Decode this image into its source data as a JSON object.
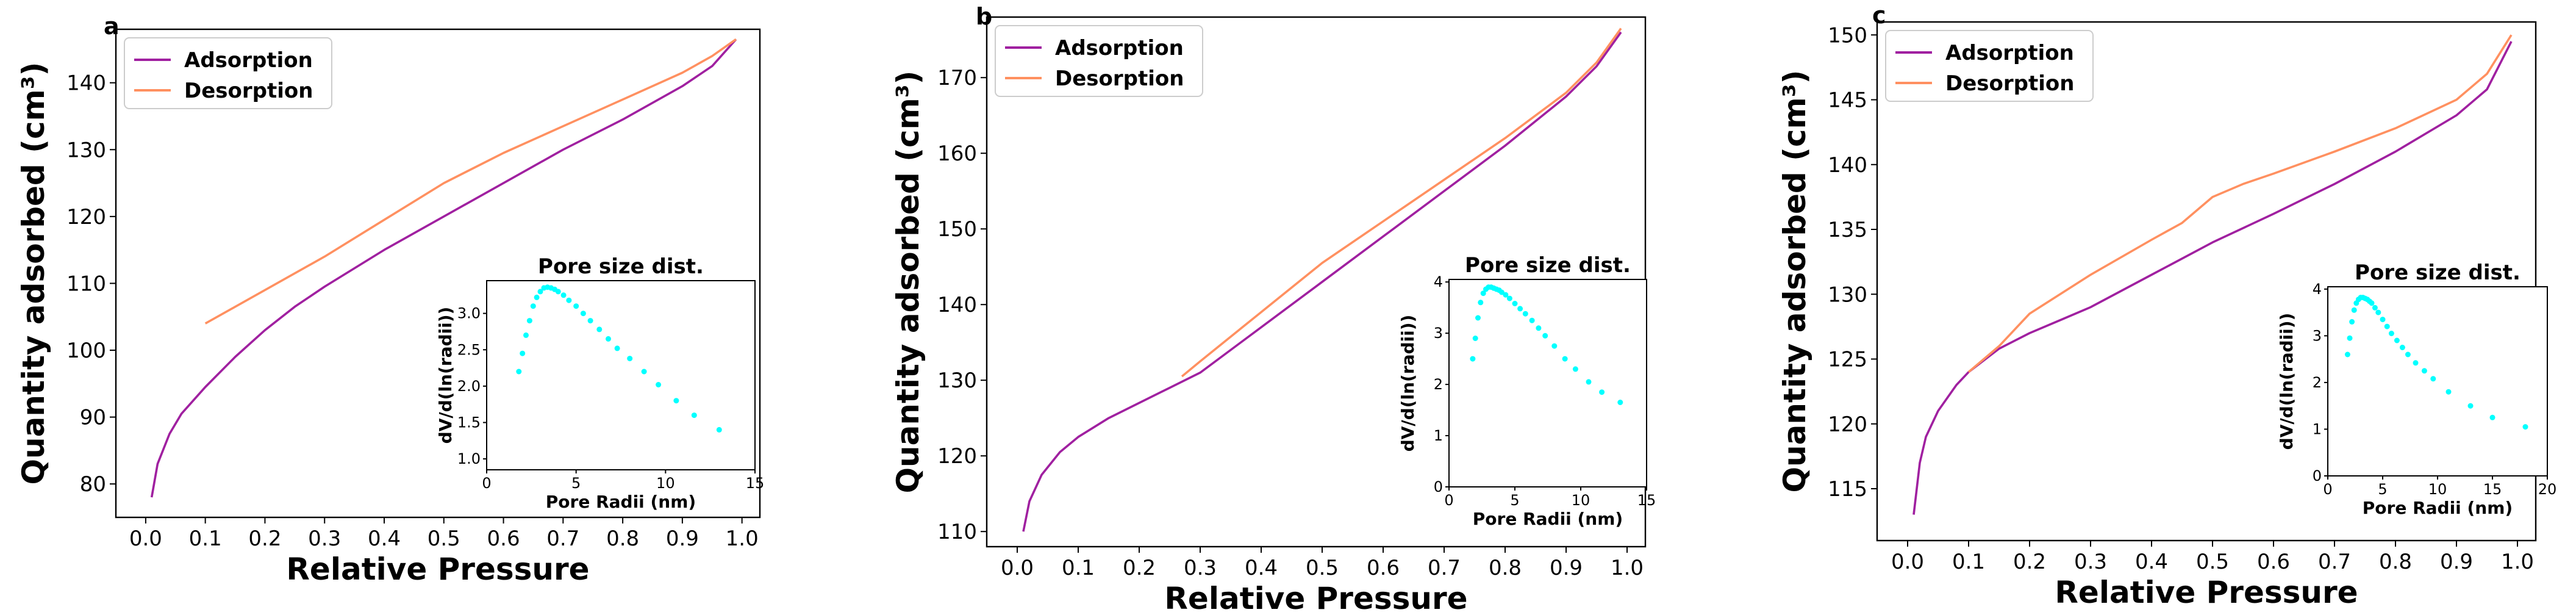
{
  "colors": {
    "adsorption": "#a020a0",
    "desorption": "#ff9060",
    "inset_points": "#00ffff"
  },
  "chart_data": [
    {
      "type": "line",
      "panel_label": "a",
      "xlabel": "Relative Pressure",
      "ylabel": "Quantity adsorbed (cm³)",
      "xlim": [
        -0.05,
        1.03
      ],
      "ylim": [
        75,
        148
      ],
      "xticks": [
        0.0,
        0.1,
        0.2,
        0.3,
        0.4,
        0.5,
        0.6,
        0.7,
        0.8,
        0.9,
        1.0
      ],
      "xtick_labels": [
        "0.0",
        "0.1",
        "0.2",
        "0.3",
        "0.4",
        "0.5",
        "0.6",
        "0.7",
        "0.8",
        "0.9",
        "1.0"
      ],
      "yticks": [
        80,
        90,
        100,
        110,
        120,
        130,
        140
      ],
      "ytick_labels": [
        "80",
        "90",
        "100",
        "110",
        "120",
        "130",
        "140"
      ],
      "legend_position": "top-left",
      "series": [
        {
          "name": "Adsorption",
          "color_key": "adsorption",
          "x": [
            0.01,
            0.02,
            0.04,
            0.06,
            0.1,
            0.15,
            0.2,
            0.25,
            0.3,
            0.4,
            0.5,
            0.6,
            0.7,
            0.8,
            0.9,
            0.95,
            0.99
          ],
          "y": [
            78,
            83,
            87.5,
            90.5,
            94.5,
            99,
            103,
            106.5,
            109.5,
            115,
            120,
            125,
            130,
            134.5,
            139.5,
            142.5,
            146.5
          ]
        },
        {
          "name": "Desorption",
          "color_key": "desorption",
          "x": [
            0.1,
            0.15,
            0.2,
            0.3,
            0.4,
            0.5,
            0.6,
            0.7,
            0.8,
            0.9,
            0.95,
            0.99
          ],
          "y": [
            104,
            106.5,
            109,
            114,
            119.5,
            125,
            129.5,
            133.5,
            137.5,
            141.5,
            144,
            146.5
          ]
        }
      ],
      "inset": {
        "title": "Pore size dist.",
        "xlabel": "Pore Radii (nm)",
        "ylabel": "dV/d(ln(radii))",
        "xlim": [
          0,
          15
        ],
        "ylim": [
          0.85,
          3.45
        ],
        "xticks": [
          0,
          5,
          10,
          15
        ],
        "xtick_labels": [
          "0",
          "5",
          "10",
          "15"
        ],
        "yticks": [
          1.0,
          1.5,
          2.0,
          2.5,
          3.0
        ],
        "ytick_labels": [
          "1.0",
          "1.5",
          "2.0",
          "2.5",
          "3.0"
        ],
        "points": {
          "x": [
            1.8,
            2.0,
            2.2,
            2.4,
            2.6,
            2.8,
            3.0,
            3.2,
            3.4,
            3.6,
            3.8,
            4.0,
            4.3,
            4.6,
            5.0,
            5.4,
            5.8,
            6.3,
            6.8,
            7.3,
            8.0,
            8.8,
            9.6,
            10.6,
            11.6,
            13.0
          ],
          "y": [
            2.2,
            2.45,
            2.7,
            2.9,
            3.1,
            3.22,
            3.3,
            3.35,
            3.36,
            3.35,
            3.33,
            3.3,
            3.25,
            3.18,
            3.1,
            3.0,
            2.9,
            2.78,
            2.65,
            2.52,
            2.38,
            2.2,
            2.02,
            1.8,
            1.6,
            1.4
          ]
        }
      }
    },
    {
      "type": "line",
      "panel_label": "b",
      "xlabel": "Relative Pressure",
      "ylabel": "Quantity adsorbed (cm³)",
      "xlim": [
        -0.05,
        1.03
      ],
      "ylim": [
        108,
        178
      ],
      "xticks": [
        0.0,
        0.1,
        0.2,
        0.3,
        0.4,
        0.5,
        0.6,
        0.7,
        0.8,
        0.9,
        1.0
      ],
      "xtick_labels": [
        "0.0",
        "0.1",
        "0.2",
        "0.3",
        "0.4",
        "0.5",
        "0.6",
        "0.7",
        "0.8",
        "0.9",
        "1.0"
      ],
      "yticks": [
        110,
        120,
        130,
        140,
        150,
        160,
        170
      ],
      "ytick_labels": [
        "110",
        "120",
        "130",
        "140",
        "150",
        "160",
        "170"
      ],
      "legend_position": "top-left",
      "series": [
        {
          "name": "Adsorption",
          "color_key": "adsorption",
          "x": [
            0.01,
            0.02,
            0.04,
            0.07,
            0.1,
            0.15,
            0.2,
            0.25,
            0.3,
            0.4,
            0.5,
            0.6,
            0.7,
            0.8,
            0.9,
            0.95,
            0.99
          ],
          "y": [
            110,
            114,
            117.5,
            120.5,
            122.5,
            125,
            127,
            129,
            131,
            137,
            143,
            149,
            155,
            161,
            167.5,
            171.5,
            176
          ]
        },
        {
          "name": "Desorption",
          "color_key": "desorption",
          "x": [
            0.27,
            0.3,
            0.4,
            0.5,
            0.6,
            0.7,
            0.8,
            0.9,
            0.95,
            0.99
          ],
          "y": [
            130.5,
            132.5,
            139,
            145.5,
            151,
            156.5,
            162,
            168,
            172,
            176.5
          ]
        }
      ],
      "inset": {
        "title": "Pore size dist.",
        "xlabel": "Pore Radii (nm)",
        "ylabel": "dV/d(ln(radii))",
        "xlim": [
          0,
          15
        ],
        "ylim": [
          0,
          4.05
        ],
        "xticks": [
          0,
          5,
          10,
          15
        ],
        "xtick_labels": [
          "0",
          "5",
          "10",
          "15"
        ],
        "yticks": [
          0,
          1,
          2,
          3,
          4
        ],
        "ytick_labels": [
          "0",
          "1",
          "2",
          "3",
          "4"
        ],
        "points": {
          "x": [
            1.8,
            2.0,
            2.2,
            2.4,
            2.6,
            2.8,
            3.0,
            3.2,
            3.4,
            3.6,
            3.8,
            4.0,
            4.3,
            4.6,
            5.0,
            5.4,
            5.8,
            6.3,
            6.8,
            7.3,
            8.0,
            8.8,
            9.6,
            10.6,
            11.6,
            13.0
          ],
          "y": [
            2.5,
            2.9,
            3.3,
            3.6,
            3.78,
            3.86,
            3.9,
            3.9,
            3.88,
            3.86,
            3.84,
            3.8,
            3.75,
            3.68,
            3.58,
            3.48,
            3.38,
            3.25,
            3.1,
            2.95,
            2.75,
            2.5,
            2.3,
            2.05,
            1.85,
            1.65
          ]
        }
      }
    },
    {
      "type": "line",
      "panel_label": "c",
      "xlabel": "Relative Pressure",
      "ylabel": "Quantity adsorbed (cm³)",
      "xlim": [
        -0.05,
        1.03
      ],
      "ylim": [
        111,
        151
      ],
      "xticks": [
        0.0,
        0.1,
        0.2,
        0.3,
        0.4,
        0.5,
        0.6,
        0.7,
        0.8,
        0.9,
        1.0
      ],
      "xtick_labels": [
        "0.0",
        "0.1",
        "0.2",
        "0.3",
        "0.4",
        "0.5",
        "0.6",
        "0.7",
        "0.8",
        "0.9",
        "1.0"
      ],
      "yticks": [
        115,
        120,
        125,
        130,
        135,
        140,
        145,
        150
      ],
      "ytick_labels": [
        "115",
        "120",
        "125",
        "130",
        "135",
        "140",
        "145",
        "150"
      ],
      "legend_position": "top-left",
      "series": [
        {
          "name": "Adsorption",
          "color_key": "adsorption",
          "x": [
            0.01,
            0.02,
            0.03,
            0.05,
            0.08,
            0.1,
            0.15,
            0.2,
            0.25,
            0.3,
            0.4,
            0.5,
            0.6,
            0.7,
            0.8,
            0.9,
            0.95,
            0.99
          ],
          "y": [
            113,
            117,
            119,
            121,
            123,
            124,
            125.8,
            127,
            128,
            129,
            131.5,
            134,
            136.2,
            138.5,
            141,
            143.8,
            145.8,
            149.5
          ]
        },
        {
          "name": "Desorption",
          "color_key": "desorption",
          "x": [
            0.1,
            0.15,
            0.2,
            0.3,
            0.4,
            0.45,
            0.5,
            0.55,
            0.6,
            0.7,
            0.8,
            0.9,
            0.95,
            0.99
          ],
          "y": [
            124,
            126,
            128.5,
            131.5,
            134.2,
            135.5,
            137.5,
            138.5,
            139.3,
            141,
            142.8,
            145,
            147,
            150
          ]
        }
      ],
      "inset": {
        "title": "Pore size dist.",
        "xlabel": "Pore Radii (nm)",
        "ylabel": "dV/d(ln(radii))",
        "xlim": [
          0,
          20
        ],
        "ylim": [
          0,
          4.05
        ],
        "xticks": [
          0,
          5,
          10,
          15,
          20
        ],
        "xtick_labels": [
          "0",
          "5",
          "10",
          "15",
          "20"
        ],
        "yticks": [
          0,
          1,
          2,
          3,
          4
        ],
        "ytick_labels": [
          "0",
          "1",
          "2",
          "3",
          "4"
        ],
        "points": {
          "x": [
            1.8,
            2.0,
            2.2,
            2.4,
            2.6,
            2.8,
            3.0,
            3.2,
            3.4,
            3.6,
            3.8,
            4.0,
            4.3,
            4.6,
            5.0,
            5.4,
            5.8,
            6.3,
            6.8,
            7.3,
            8.0,
            8.8,
            9.6,
            11.0,
            13.0,
            15.0,
            18.0
          ],
          "y": [
            2.6,
            2.95,
            3.3,
            3.55,
            3.7,
            3.78,
            3.82,
            3.82,
            3.8,
            3.78,
            3.74,
            3.7,
            3.6,
            3.5,
            3.35,
            3.2,
            3.05,
            2.9,
            2.75,
            2.6,
            2.42,
            2.25,
            2.08,
            1.8,
            1.5,
            1.25,
            1.05
          ]
        }
      }
    }
  ]
}
